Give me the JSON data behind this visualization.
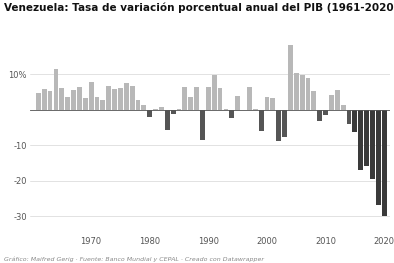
{
  "title": "Venezuela: Tasa de variación porcentual anual del PIB (1961-2020)",
  "footnote": "Gráfico: Maifred Gerig · Fuente: Banco Mundial y CEPAL · Creado con Datawrapper",
  "years": [
    1961,
    1962,
    1963,
    1964,
    1965,
    1966,
    1967,
    1968,
    1969,
    1970,
    1971,
    1972,
    1973,
    1974,
    1975,
    1976,
    1977,
    1978,
    1979,
    1980,
    1981,
    1982,
    1983,
    1984,
    1985,
    1986,
    1987,
    1988,
    1989,
    1990,
    1991,
    1992,
    1993,
    1994,
    1995,
    1996,
    1997,
    1998,
    1999,
    2000,
    2001,
    2002,
    2003,
    2004,
    2005,
    2006,
    2007,
    2008,
    2009,
    2010,
    2011,
    2012,
    2013,
    2014,
    2015,
    2016,
    2017,
    2018,
    2019,
    2020
  ],
  "values": [
    4.7,
    5.8,
    5.2,
    11.6,
    6.1,
    3.5,
    5.5,
    6.4,
    3.2,
    7.8,
    3.7,
    2.7,
    6.6,
    5.8,
    6.0,
    7.4,
    6.7,
    2.7,
    1.3,
    -2.0,
    0.3,
    0.7,
    -5.6,
    -1.3,
    0.3,
    6.5,
    3.6,
    6.5,
    -8.6,
    6.5,
    9.7,
    6.1,
    0.3,
    -2.4,
    4.0,
    -0.2,
    6.4,
    0.3,
    -6.0,
    3.7,
    3.4,
    -8.9,
    -7.8,
    18.3,
    10.3,
    9.9,
    8.8,
    5.3,
    -3.2,
    -1.5,
    4.2,
    5.6,
    1.3,
    -3.9,
    -6.2,
    -17.0,
    -15.7,
    -19.6,
    -26.8,
    -30.0
  ],
  "ylim": [
    -35,
    22
  ],
  "yticks": [
    -30,
    -20,
    -10,
    0,
    10
  ],
  "xtick_years": [
    1970,
    1980,
    1990,
    2000,
    2010,
    2020
  ],
  "color_positive": "#b8b8b8",
  "color_negative_mid": "#555555",
  "color_negative_dark": "#3a3a3a",
  "background_color": "#ffffff",
  "title_fontsize": 7.5,
  "footnote_fontsize": 4.5,
  "axis_fontsize": 6.0
}
